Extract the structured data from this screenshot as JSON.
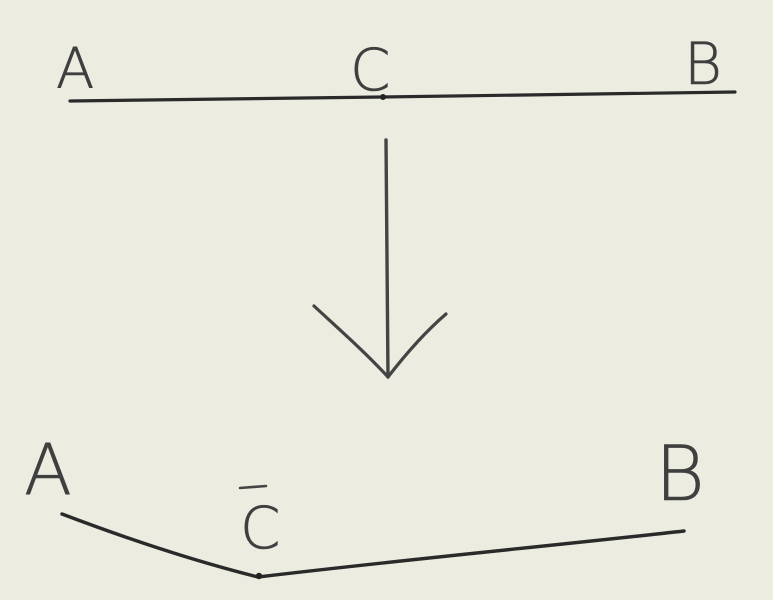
{
  "background_color": "#eeeee2",
  "ink_color": "#2a2a2a",
  "top_segment": {
    "label_left": "A",
    "label_middle": "C",
    "label_right": "B"
  },
  "arrow": {
    "direction": "down"
  },
  "bottom_segment": {
    "label_left": "A",
    "label_middle": "C",
    "label_middle_overline": true,
    "label_right": "B"
  }
}
